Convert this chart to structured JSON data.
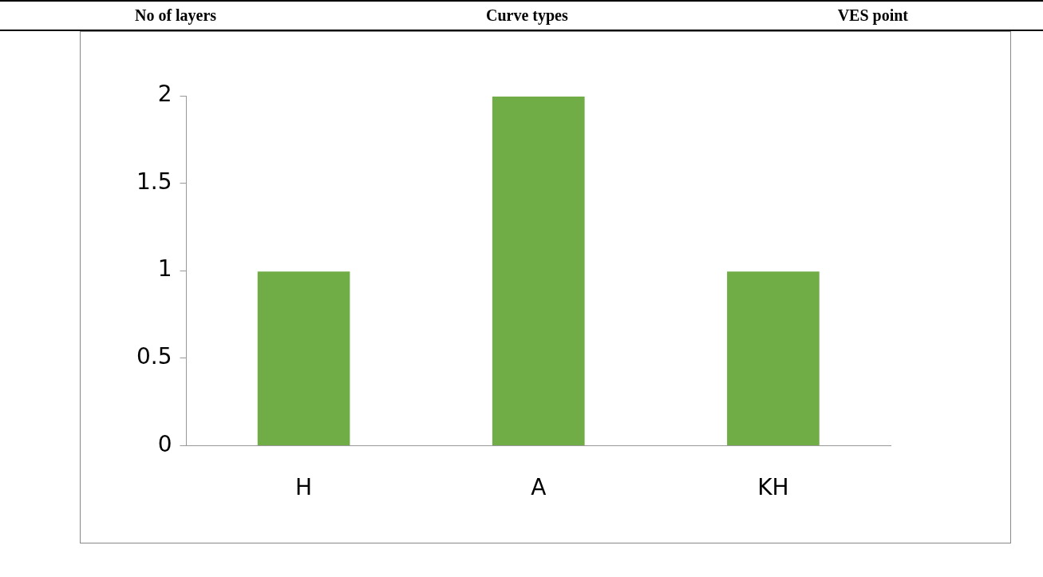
{
  "chart_data": {
    "type": "bar",
    "annotations": [
      "No of layers",
      "Curve types",
      "VES point"
    ],
    "categories": [
      "H",
      "A",
      "KH"
    ],
    "values": [
      1,
      2,
      1
    ],
    "color": "#70ad47",
    "ylim": [
      0,
      2
    ],
    "yticks": [
      0,
      0.5,
      1,
      1.5,
      2
    ],
    "grid": false,
    "legend": false
  }
}
